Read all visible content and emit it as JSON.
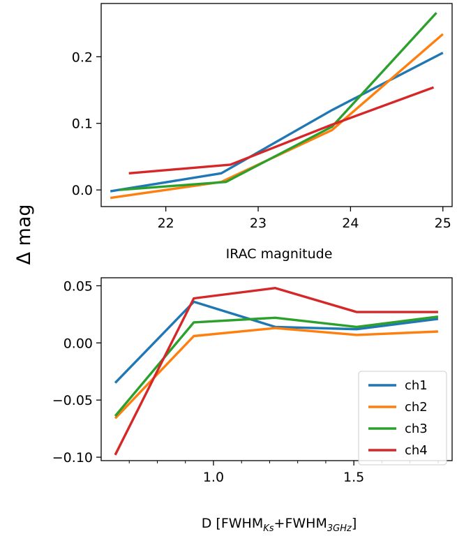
{
  "ylabel": "Δ mag",
  "colors": {
    "ch1": "#1f77b4",
    "ch2": "#ff7f0e",
    "ch3": "#2ca02c",
    "ch4": "#d62728"
  },
  "chart_data": [
    {
      "type": "line",
      "xlabel": "IRAC magnitude",
      "ylabel": "Δ mag",
      "xlim": [
        21.3,
        25.1
      ],
      "ylim": [
        -0.025,
        0.28
      ],
      "xticks": [
        22,
        23,
        24,
        25
      ],
      "xtick_labels": [
        "22",
        "23",
        "24",
        "25"
      ],
      "yticks": [
        0.0,
        0.1,
        0.2
      ],
      "ytick_labels": [
        "0.0",
        "0.1",
        "0.2"
      ],
      "series": [
        {
          "name": "ch1",
          "x": [
            21.4,
            22.6,
            23.8,
            25.0
          ],
          "y": [
            -0.002,
            0.025,
            0.12,
            0.206
          ]
        },
        {
          "name": "ch2",
          "x": [
            21.4,
            22.6,
            23.8,
            25.0
          ],
          "y": [
            -0.012,
            0.012,
            0.09,
            0.234
          ]
        },
        {
          "name": "ch3",
          "x": [
            21.5,
            22.65,
            23.8,
            24.93
          ],
          "y": [
            0.0,
            0.012,
            0.095,
            0.266
          ]
        },
        {
          "name": "ch4",
          "x": [
            21.6,
            22.7,
            23.8,
            24.9
          ],
          "y": [
            0.025,
            0.038,
            0.098,
            0.154
          ]
        }
      ]
    },
    {
      "type": "line",
      "xlabel": "D [FWHM_Ks+FWHM_3GHz]",
      "xlabel_parts": {
        "prefix": "D [FWHM",
        "sub1": "Ks",
        "mid": "+FWHM",
        "sub2": "3GHz",
        "suffix": "]"
      },
      "ylabel": "Δ mag",
      "xlim": [
        0.6,
        1.85
      ],
      "ylim": [
        -0.103,
        0.057
      ],
      "xticks": [
        1.0,
        1.5
      ],
      "xtick_labels": [
        "1.0",
        "1.5"
      ],
      "yticks": [
        -0.1,
        -0.05,
        0.0,
        0.05
      ],
      "ytick_labels": [
        "−0.10",
        "−0.05",
        "0.00",
        "0.05"
      ],
      "legend": {
        "position": "lower right",
        "entries": [
          "ch1",
          "ch2",
          "ch3",
          "ch4"
        ]
      },
      "series": [
        {
          "name": "ch1",
          "x": [
            0.65,
            0.93,
            1.22,
            1.51,
            1.8
          ],
          "y": [
            -0.035,
            0.036,
            0.014,
            0.012,
            0.021
          ]
        },
        {
          "name": "ch2",
          "x": [
            0.65,
            0.93,
            1.22,
            1.51,
            1.8
          ],
          "y": [
            -0.066,
            0.006,
            0.013,
            0.007,
            0.01
          ]
        },
        {
          "name": "ch3",
          "x": [
            0.65,
            0.93,
            1.22,
            1.51,
            1.8
          ],
          "y": [
            -0.064,
            0.018,
            0.022,
            0.014,
            0.023
          ]
        },
        {
          "name": "ch4",
          "x": [
            0.65,
            0.93,
            1.22,
            1.51,
            1.8
          ],
          "y": [
            -0.098,
            0.039,
            0.048,
            0.027,
            0.027
          ]
        }
      ]
    }
  ]
}
